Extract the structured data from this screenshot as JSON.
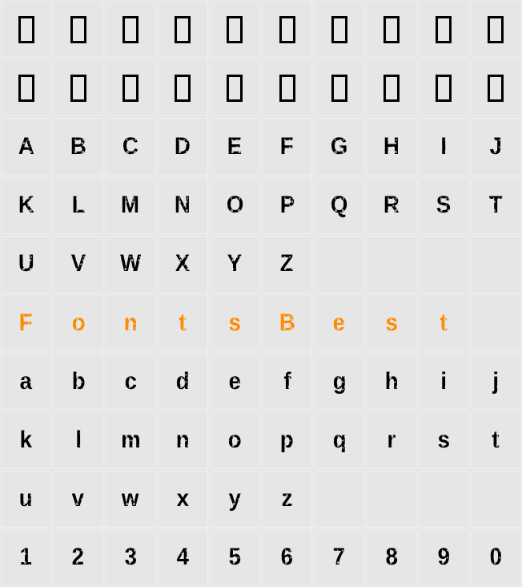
{
  "grid": {
    "cols": 10,
    "rows": 10,
    "cell_bg": "#e6e6e6",
    "cell_border": "#f0f0f0",
    "cells": [
      {
        "type": "tofu"
      },
      {
        "type": "tofu"
      },
      {
        "type": "tofu"
      },
      {
        "type": "tofu"
      },
      {
        "type": "tofu"
      },
      {
        "type": "tofu"
      },
      {
        "type": "tofu"
      },
      {
        "type": "tofu"
      },
      {
        "type": "tofu"
      },
      {
        "type": "tofu"
      },
      {
        "type": "tofu"
      },
      {
        "type": "tofu"
      },
      {
        "type": "tofu"
      },
      {
        "type": "tofu"
      },
      {
        "type": "tofu"
      },
      {
        "type": "tofu"
      },
      {
        "type": "tofu"
      },
      {
        "type": "tofu"
      },
      {
        "type": "tofu"
      },
      {
        "type": "tofu"
      },
      {
        "type": "glyph",
        "text": "A",
        "color": "#000000"
      },
      {
        "type": "glyph",
        "text": "B",
        "color": "#000000"
      },
      {
        "type": "glyph",
        "text": "C",
        "color": "#000000"
      },
      {
        "type": "glyph",
        "text": "D",
        "color": "#000000"
      },
      {
        "type": "glyph",
        "text": "E",
        "color": "#000000"
      },
      {
        "type": "glyph",
        "text": "F",
        "color": "#000000"
      },
      {
        "type": "glyph",
        "text": "G",
        "color": "#000000"
      },
      {
        "type": "glyph",
        "text": "H",
        "color": "#000000"
      },
      {
        "type": "glyph",
        "text": "I",
        "color": "#000000"
      },
      {
        "type": "glyph",
        "text": "J",
        "color": "#000000"
      },
      {
        "type": "glyph",
        "text": "K",
        "color": "#000000"
      },
      {
        "type": "glyph",
        "text": "L",
        "color": "#000000"
      },
      {
        "type": "glyph",
        "text": "M",
        "color": "#000000"
      },
      {
        "type": "glyph",
        "text": "N",
        "color": "#000000"
      },
      {
        "type": "glyph",
        "text": "O",
        "color": "#000000"
      },
      {
        "type": "glyph",
        "text": "P",
        "color": "#000000"
      },
      {
        "type": "glyph",
        "text": "Q",
        "color": "#000000"
      },
      {
        "type": "glyph",
        "text": "R",
        "color": "#000000"
      },
      {
        "type": "glyph",
        "text": "S",
        "color": "#000000"
      },
      {
        "type": "glyph",
        "text": "T",
        "color": "#000000"
      },
      {
        "type": "glyph",
        "text": "U",
        "color": "#000000"
      },
      {
        "type": "glyph",
        "text": "V",
        "color": "#000000"
      },
      {
        "type": "glyph",
        "text": "W",
        "color": "#000000"
      },
      {
        "type": "glyph",
        "text": "X",
        "color": "#000000"
      },
      {
        "type": "glyph",
        "text": "Y",
        "color": "#000000"
      },
      {
        "type": "glyph",
        "text": "Z",
        "color": "#000000"
      },
      {
        "type": "empty"
      },
      {
        "type": "empty"
      },
      {
        "type": "empty"
      },
      {
        "type": "empty"
      },
      {
        "type": "glyph",
        "text": "F",
        "color": "#ff8a00"
      },
      {
        "type": "glyph",
        "text": "o",
        "color": "#ff8a00"
      },
      {
        "type": "glyph",
        "text": "n",
        "color": "#ff8a00"
      },
      {
        "type": "glyph",
        "text": "t",
        "color": "#ff8a00"
      },
      {
        "type": "glyph",
        "text": "s",
        "color": "#ff8a00"
      },
      {
        "type": "glyph",
        "text": "B",
        "color": "#ff8a00"
      },
      {
        "type": "glyph",
        "text": "e",
        "color": "#ff8a00"
      },
      {
        "type": "glyph",
        "text": "s",
        "color": "#ff8a00"
      },
      {
        "type": "glyph",
        "text": "t",
        "color": "#ff8a00"
      },
      {
        "type": "empty"
      },
      {
        "type": "glyph",
        "text": "a",
        "color": "#000000"
      },
      {
        "type": "glyph",
        "text": "b",
        "color": "#000000"
      },
      {
        "type": "glyph",
        "text": "c",
        "color": "#000000"
      },
      {
        "type": "glyph",
        "text": "d",
        "color": "#000000"
      },
      {
        "type": "glyph",
        "text": "e",
        "color": "#000000"
      },
      {
        "type": "glyph",
        "text": "f",
        "color": "#000000"
      },
      {
        "type": "glyph",
        "text": "g",
        "color": "#000000"
      },
      {
        "type": "glyph",
        "text": "h",
        "color": "#000000"
      },
      {
        "type": "glyph",
        "text": "i",
        "color": "#000000"
      },
      {
        "type": "glyph",
        "text": "j",
        "color": "#000000"
      },
      {
        "type": "glyph",
        "text": "k",
        "color": "#000000"
      },
      {
        "type": "glyph",
        "text": "l",
        "color": "#000000"
      },
      {
        "type": "glyph",
        "text": "m",
        "color": "#000000"
      },
      {
        "type": "glyph",
        "text": "n",
        "color": "#000000"
      },
      {
        "type": "glyph",
        "text": "o",
        "color": "#000000"
      },
      {
        "type": "glyph",
        "text": "p",
        "color": "#000000"
      },
      {
        "type": "glyph",
        "text": "q",
        "color": "#000000"
      },
      {
        "type": "glyph",
        "text": "r",
        "color": "#000000"
      },
      {
        "type": "glyph",
        "text": "s",
        "color": "#000000"
      },
      {
        "type": "glyph",
        "text": "t",
        "color": "#000000"
      },
      {
        "type": "glyph",
        "text": "u",
        "color": "#000000"
      },
      {
        "type": "glyph",
        "text": "v",
        "color": "#000000"
      },
      {
        "type": "glyph",
        "text": "w",
        "color": "#000000"
      },
      {
        "type": "glyph",
        "text": "x",
        "color": "#000000"
      },
      {
        "type": "glyph",
        "text": "y",
        "color": "#000000"
      },
      {
        "type": "glyph",
        "text": "z",
        "color": "#000000"
      },
      {
        "type": "empty"
      },
      {
        "type": "empty"
      },
      {
        "type": "empty"
      },
      {
        "type": "empty"
      },
      {
        "type": "glyph",
        "text": "1",
        "color": "#000000"
      },
      {
        "type": "glyph",
        "text": "2",
        "color": "#000000"
      },
      {
        "type": "glyph",
        "text": "3",
        "color": "#000000"
      },
      {
        "type": "glyph",
        "text": "4",
        "color": "#000000"
      },
      {
        "type": "glyph",
        "text": "5",
        "color": "#000000"
      },
      {
        "type": "glyph",
        "text": "6",
        "color": "#000000"
      },
      {
        "type": "glyph",
        "text": "7",
        "color": "#000000"
      },
      {
        "type": "glyph",
        "text": "8",
        "color": "#000000"
      },
      {
        "type": "glyph",
        "text": "9",
        "color": "#000000"
      },
      {
        "type": "glyph",
        "text": "0",
        "color": "#000000"
      }
    ]
  },
  "style": {
    "glyph_fontsize": 30,
    "glyph_fontweight": 700,
    "background": "#e6e6e6",
    "tofu_border": "#000000",
    "tofu_w": 20,
    "tofu_h": 34,
    "highlight_color": "#ff8a00"
  }
}
